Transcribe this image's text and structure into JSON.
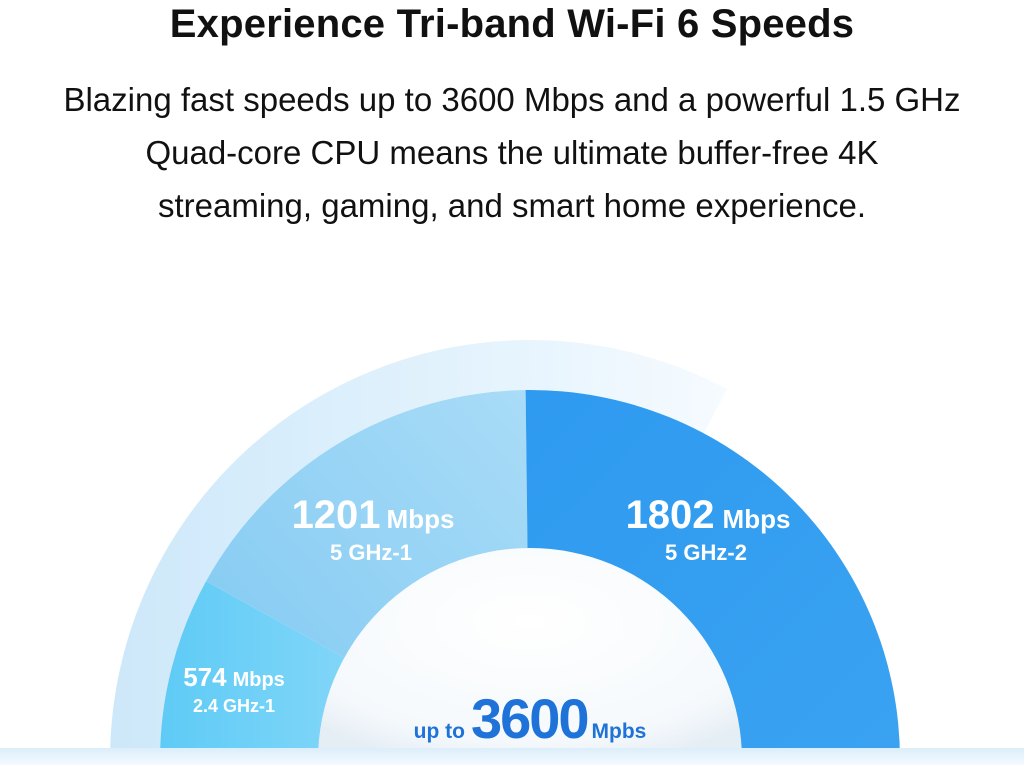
{
  "header": {
    "title": "Experience Tri-band Wi-Fi 6 Speeds",
    "subtitle_lines": [
      "Blazing fast speeds up to 3600 Mbps and a powerful 1.5 GHz",
      "Quad-core CPU means the ultimate buffer-free 4K",
      "streaming, gaming, and smart home experience."
    ]
  },
  "chart_data": {
    "type": "pie",
    "segments": [
      {
        "band": "2.4 GHz-1",
        "value": 574,
        "unit": "Mbps",
        "color": "#7fd3f5"
      },
      {
        "band": "5 GHz-1",
        "value": 1201,
        "unit": "Mbps",
        "color": "#8fd1f3"
      },
      {
        "band": "5 GHz-2",
        "value": 1802,
        "unit": "Mbps",
        "color": "#2f9cf0"
      }
    ],
    "total": {
      "prefix": "up to",
      "value": "3600",
      "unit": "Mpbs",
      "color": "#1f73d8"
    }
  },
  "colors": {
    "outer_arc": "#d7ecfb",
    "hub": "#ffffff",
    "hub_ring": "#29aaf4"
  }
}
